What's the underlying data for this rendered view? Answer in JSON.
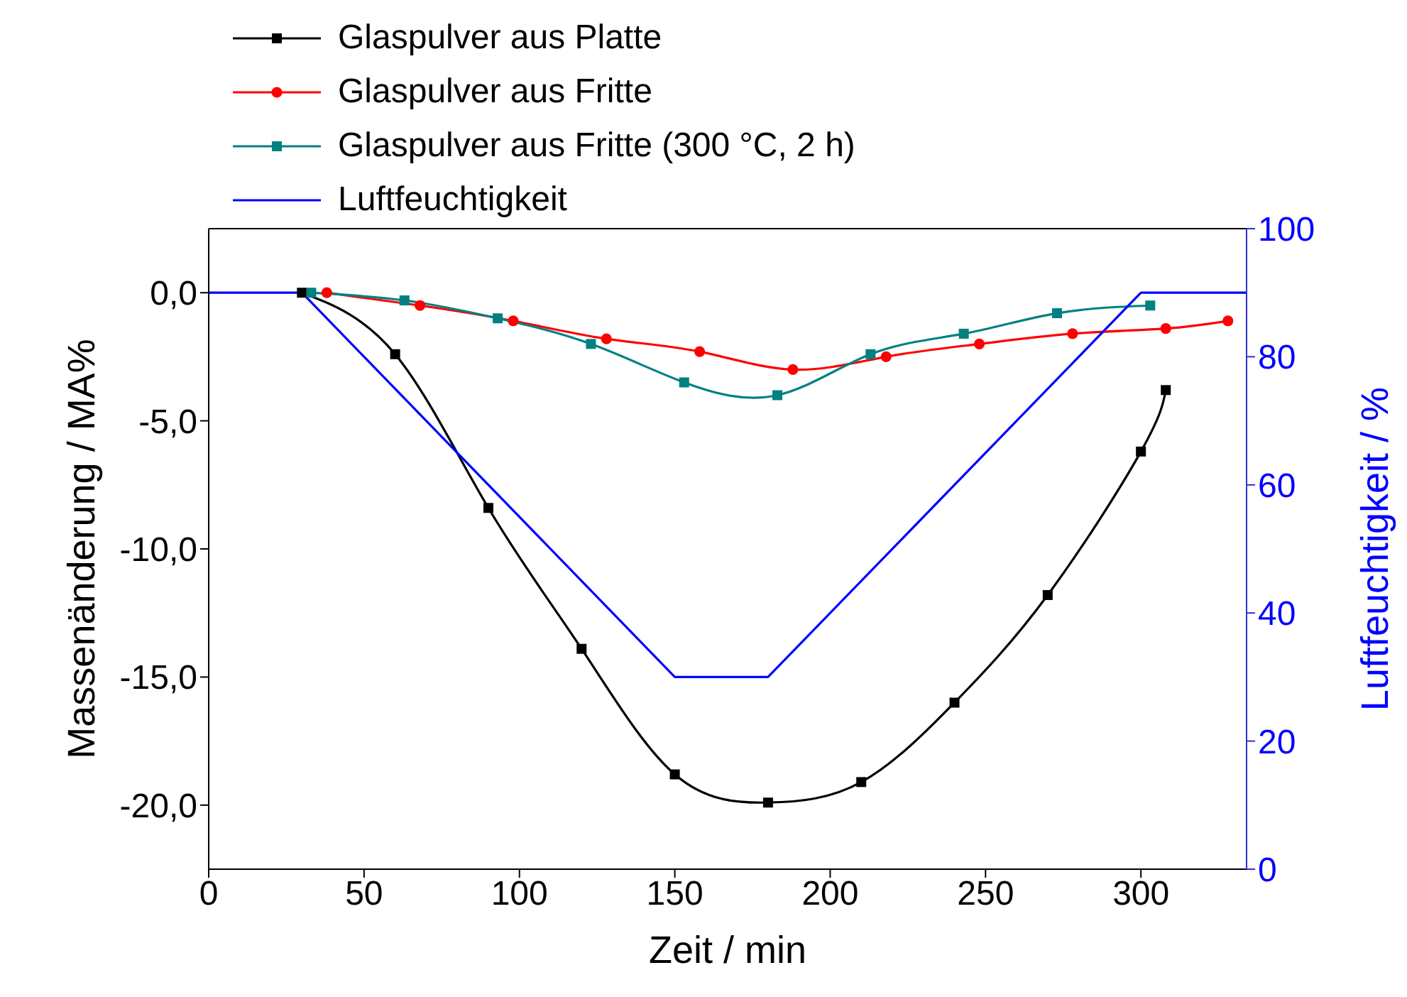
{
  "chart_data": {
    "type": "line",
    "xlabel": "Zeit / min",
    "ylabel": "Massenänderung / MA%",
    "y2label": "Luftfeuchtigkeit / %",
    "xlim": [
      0,
      334
    ],
    "xticks": [
      0,
      50,
      100,
      150,
      200,
      250,
      300
    ],
    "ylim": [
      -22.5,
      2.5
    ],
    "yticks": [
      {
        "value": 0,
        "label": "0,0"
      },
      {
        "value": -5,
        "label": "-5,0"
      },
      {
        "value": -10,
        "label": "-10,0"
      },
      {
        "value": -15,
        "label": "-15,0"
      },
      {
        "value": -20,
        "label": "-20,0"
      }
    ],
    "y2lim": [
      0,
      100
    ],
    "y2ticks": [
      0,
      20,
      40,
      60,
      80,
      100
    ],
    "grid": false,
    "legend": "top",
    "line_style": "solid",
    "series": [
      {
        "name": "Glaspulver aus Platte",
        "color": "#000000",
        "marker": "square",
        "x": [
          30,
          60,
          90,
          120,
          150,
          180,
          210,
          240,
          270,
          300,
          308
        ],
        "values": [
          0.0,
          -2.4,
          -8.4,
          -13.9,
          -18.8,
          -19.9,
          -19.1,
          -16.0,
          -11.8,
          -6.2,
          -3.8
        ]
      },
      {
        "name": "Glaspulver aus Fritte",
        "color": "#ff0000",
        "marker": "circle",
        "x": [
          38,
          68,
          98,
          128,
          158,
          188,
          218,
          248,
          278,
          308,
          328
        ],
        "values": [
          0.0,
          -0.5,
          -1.1,
          -1.8,
          -2.3,
          -3.0,
          -2.5,
          -2.0,
          -1.6,
          -1.4,
          -1.1
        ]
      },
      {
        "name": "Glaspulver aus Fritte (300 °C, 2 h)",
        "color": "#008080",
        "marker": "square",
        "x": [
          33,
          63,
          93,
          123,
          153,
          183,
          213,
          243,
          273,
          303
        ],
        "values": [
          0.0,
          -0.3,
          -1.0,
          -2.0,
          -3.5,
          -4.0,
          -2.4,
          -1.6,
          -0.8,
          -0.5
        ]
      },
      {
        "name": "Luftfeuchtigkeit",
        "color": "#0000ff",
        "marker": "none",
        "axis": "y2",
        "x": [
          0,
          30,
          150,
          180,
          300,
          334
        ],
        "values": [
          90,
          90,
          30,
          30,
          90,
          90
        ]
      }
    ]
  }
}
